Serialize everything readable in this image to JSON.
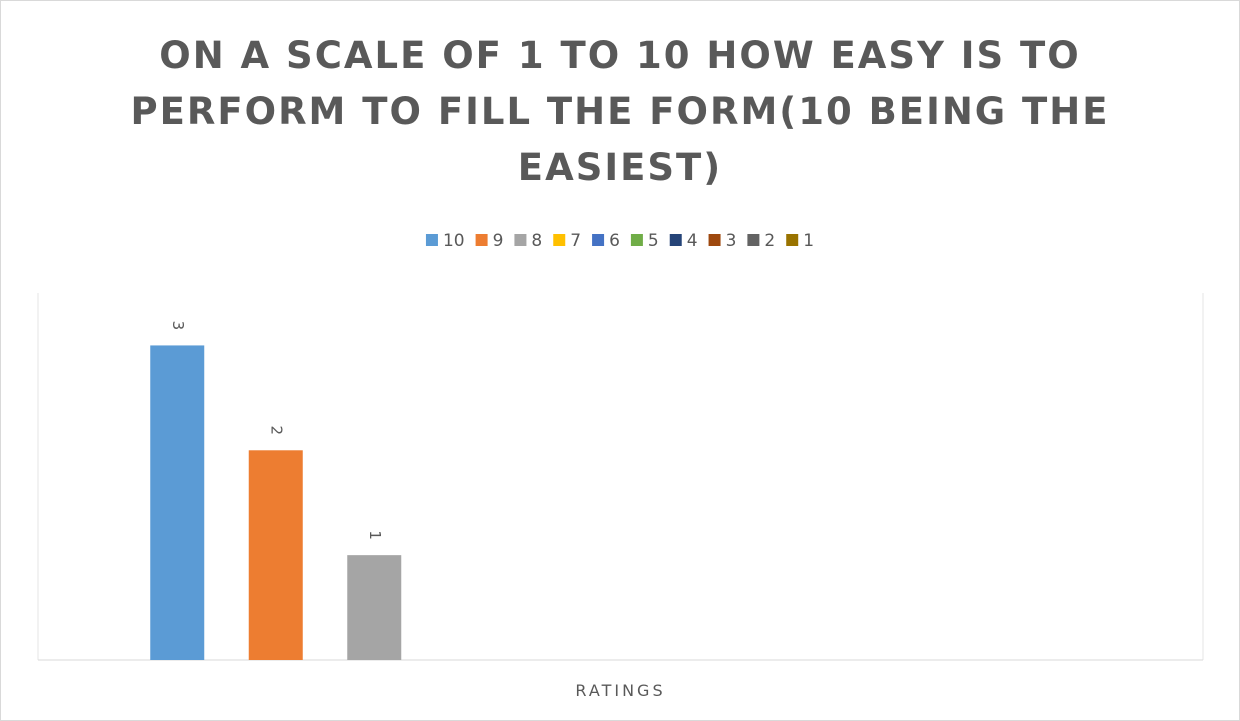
{
  "chart_data": {
    "type": "bar",
    "title": "ON A SCALE OF 1 TO 10 HOW EASY IS TO PERFORM TO FILL THE FORM(10 BEING THE EASIEST)",
    "categories": [
      "RATINGS"
    ],
    "series": [
      {
        "name": "10",
        "color": "#5b9bd5",
        "values": [
          3
        ]
      },
      {
        "name": "9",
        "color": "#ed7d31",
        "values": [
          2
        ]
      },
      {
        "name": "8",
        "color": "#a5a5a5",
        "values": [
          1
        ]
      },
      {
        "name": "7",
        "color": "#ffc000",
        "values": [
          null
        ]
      },
      {
        "name": "6",
        "color": "#4472c4",
        "values": [
          null
        ]
      },
      {
        "name": "5",
        "color": "#70ad47",
        "values": [
          null
        ]
      },
      {
        "name": "4",
        "color": "#264478",
        "values": [
          null
        ]
      },
      {
        "name": "3",
        "color": "#9e480e",
        "values": [
          null
        ]
      },
      {
        "name": "2",
        "color": "#636363",
        "values": [
          null
        ]
      },
      {
        "name": "1",
        "color": "#997300",
        "values": [
          null
        ]
      }
    ],
    "ylim": [
      0,
      3.5
    ],
    "legend": "top"
  }
}
